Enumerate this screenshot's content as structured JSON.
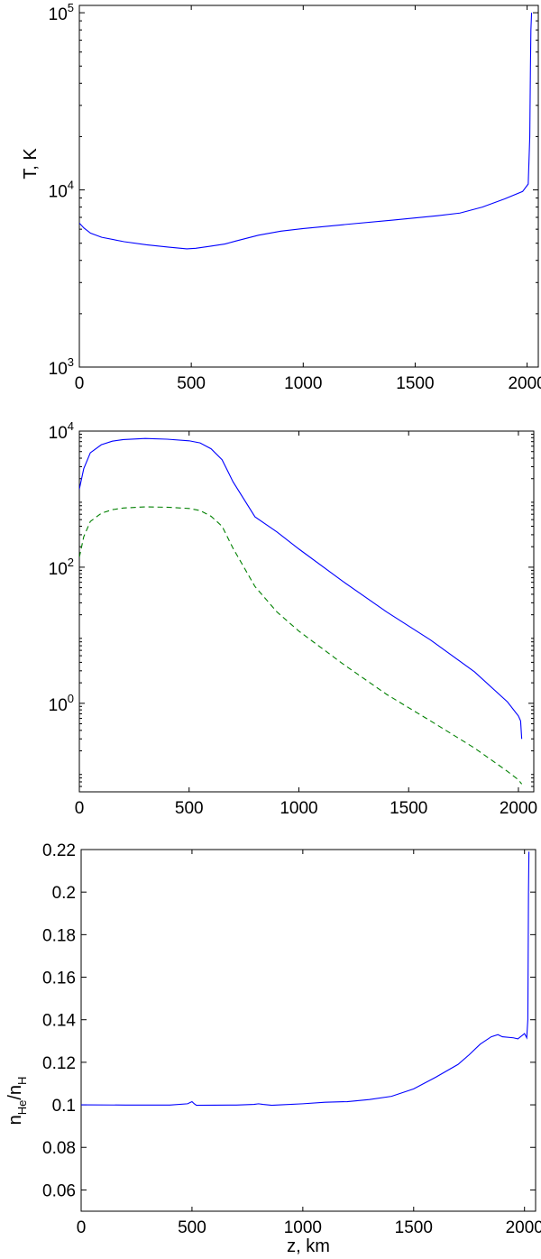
{
  "chart_data": [
    {
      "type": "line",
      "ylabel": "T, K",
      "yscale": "log",
      "xlim": [
        0,
        2050
      ],
      "ylim": [
        1000,
        110000
      ],
      "xticks": [
        0,
        500,
        1000,
        1500,
        2000
      ],
      "xtick_labels": [
        "0",
        "500",
        "1000",
        "1500",
        "2000"
      ],
      "yticks": [
        1000,
        10000,
        100000
      ],
      "ytick_labels": [
        {
          "base": "10",
          "exp": "3"
        },
        {
          "base": "10",
          "exp": "4"
        },
        {
          "base": "10",
          "exp": "5"
        }
      ],
      "series": [
        {
          "color": "#0000ff",
          "style": "solid",
          "x": [
            0,
            20,
            50,
            100,
            200,
            300,
            400,
            480,
            520,
            580,
            650,
            700,
            800,
            900,
            1000,
            1200,
            1400,
            1600,
            1700,
            1800,
            1900,
            1980,
            2005,
            2012,
            2015,
            2017,
            2020
          ],
          "y": [
            6500,
            6100,
            5700,
            5400,
            5100,
            4900,
            4750,
            4650,
            4680,
            4800,
            4950,
            5150,
            5550,
            5850,
            6050,
            6400,
            6750,
            7150,
            7400,
            8000,
            8900,
            9800,
            10800,
            20000,
            50000,
            80000,
            100000
          ]
        }
      ]
    },
    {
      "type": "line",
      "yscale": "log",
      "xlim": [
        0,
        2070
      ],
      "ylim": [
        0.05,
        10000
      ],
      "xticks": [
        0,
        500,
        1000,
        1500,
        2000
      ],
      "xtick_labels": [
        "0",
        "500",
        "1000",
        "1500",
        "2000"
      ],
      "yticks": [
        1,
        100,
        10000
      ],
      "ytick_labels": [
        {
          "base": "10",
          "exp": "0"
        },
        {
          "base": "10",
          "exp": "2"
        },
        {
          "base": "10",
          "exp": "4"
        }
      ],
      "series": [
        {
          "color": "#0000ff",
          "style": "solid",
          "x": [
            0,
            20,
            50,
            100,
            150,
            200,
            300,
            400,
            500,
            550,
            600,
            650,
            700,
            800,
            900,
            1000,
            1200,
            1400,
            1600,
            1800,
            1950,
            2000,
            2010,
            2015
          ],
          "y": [
            1400,
            2800,
            4800,
            6300,
            7100,
            7500,
            7800,
            7600,
            7200,
            6700,
            5500,
            3800,
            1800,
            550,
            330,
            185,
            62,
            22,
            8.5,
            2.9,
            1.05,
            0.65,
            0.55,
            0.3
          ]
        },
        {
          "color": "#008000",
          "style": "dashed",
          "x": [
            0,
            20,
            50,
            100,
            150,
            200,
            300,
            400,
            500,
            550,
            600,
            650,
            700,
            800,
            900,
            1000,
            1200,
            1400,
            1600,
            1800,
            1950,
            2000,
            2015
          ],
          "y": [
            140,
            280,
            470,
            620,
            700,
            740,
            770,
            760,
            730,
            680,
            560,
            400,
            190,
            52,
            22,
            11.5,
            3.8,
            1.35,
            0.55,
            0.22,
            0.1,
            0.075,
            0.065
          ]
        }
      ]
    },
    {
      "type": "line",
      "xlabel": "z, km",
      "ylabel": {
        "base": "n",
        "sub1": "He",
        "mid": "/n",
        "sub2": "H"
      },
      "xlim": [
        0,
        2050
      ],
      "ylim": [
        0.05,
        0.22
      ],
      "xticks": [
        0,
        500,
        1000,
        1500,
        2000
      ],
      "xtick_labels": [
        "0",
        "500",
        "1000",
        "1500",
        "2000"
      ],
      "yticks": [
        0.06,
        0.08,
        0.1,
        0.12,
        0.14,
        0.16,
        0.18,
        0.2,
        0.22
      ],
      "ytick_labels": [
        "0.06",
        "0.08",
        "0.1",
        "0.12",
        "0.14",
        "0.16",
        "0.18",
        "0.2",
        "0.22"
      ],
      "series": [
        {
          "color": "#0000ff",
          "style": "solid",
          "x": [
            0,
            200,
            400,
            480,
            500,
            510,
            520,
            700,
            780,
            800,
            820,
            860,
            900,
            1000,
            1100,
            1200,
            1300,
            1400,
            1500,
            1600,
            1700,
            1750,
            1800,
            1850,
            1880,
            1900,
            1950,
            1970,
            2000,
            2010,
            2015,
            2018,
            2020
          ],
          "y": [
            0.1,
            0.0999,
            0.0999,
            0.1005,
            0.1015,
            0.1005,
            0.0998,
            0.0999,
            0.1002,
            0.1005,
            0.1002,
            0.0998,
            0.1,
            0.1005,
            0.1012,
            0.1015,
            0.1025,
            0.104,
            0.1075,
            0.113,
            0.119,
            0.1235,
            0.1285,
            0.132,
            0.133,
            0.132,
            0.1315,
            0.131,
            0.1335,
            0.1315,
            0.14,
            0.2,
            0.219
          ]
        }
      ]
    }
  ]
}
